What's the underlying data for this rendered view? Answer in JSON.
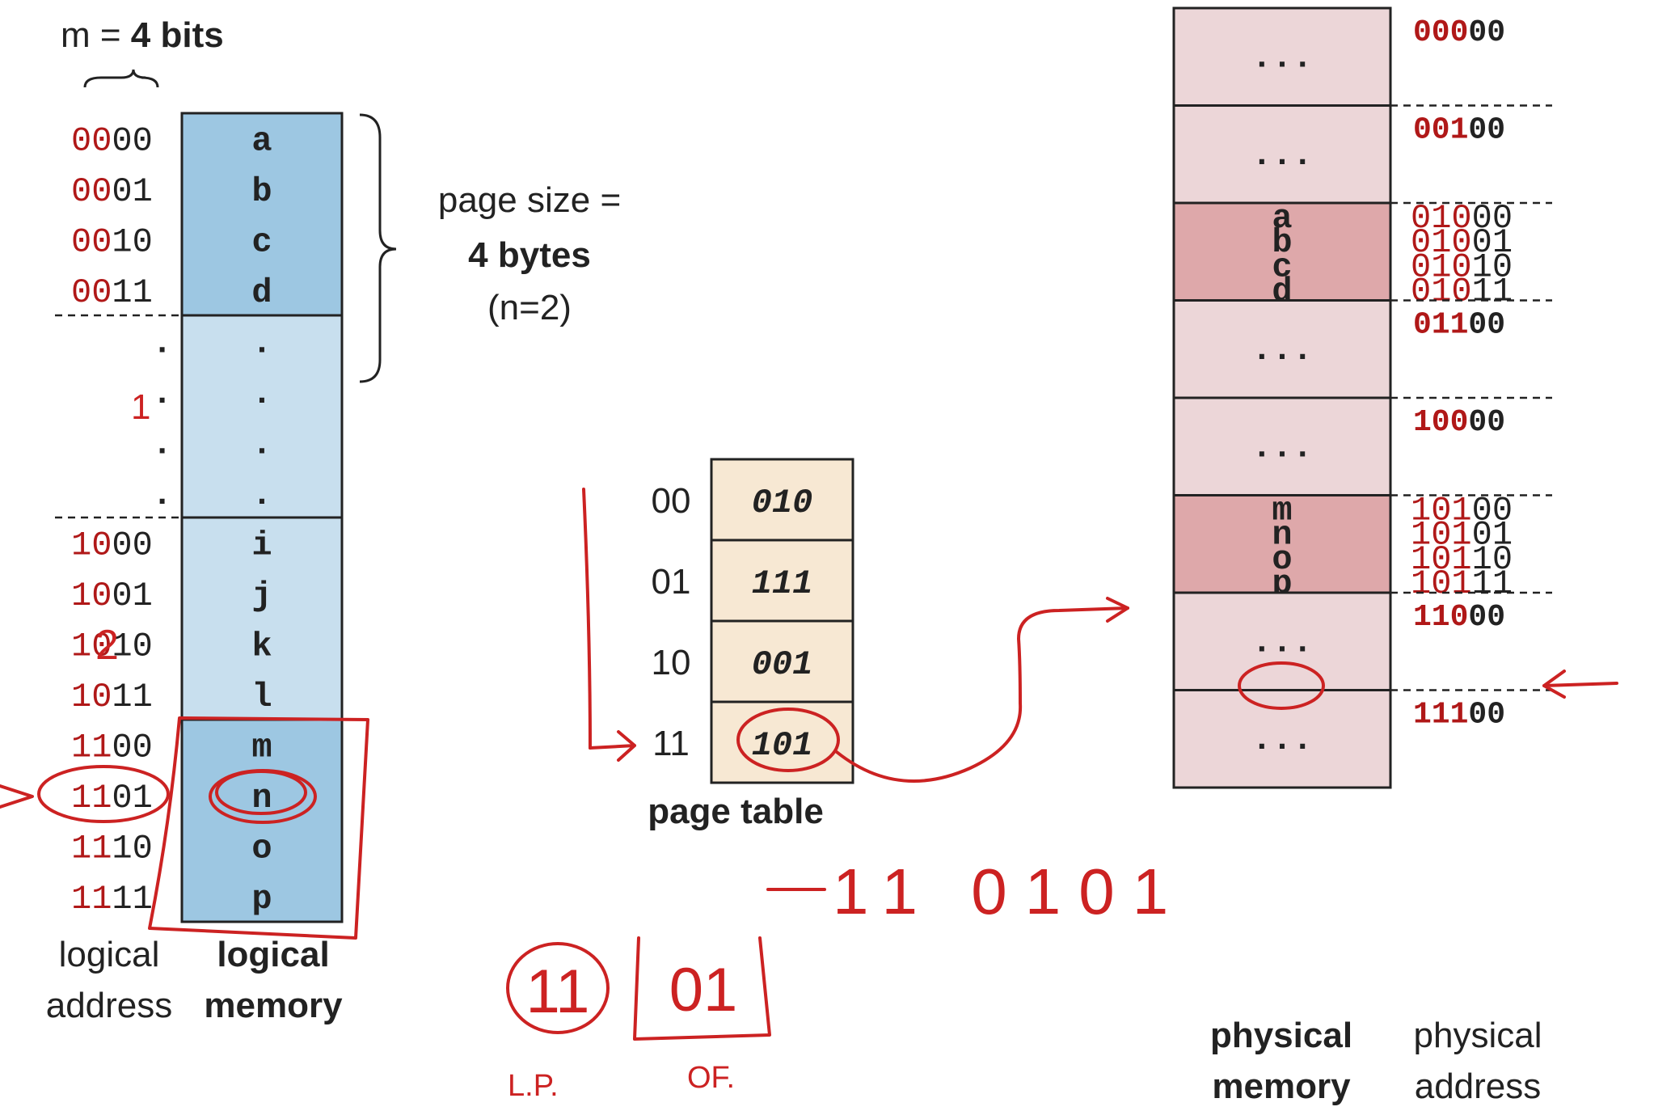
{
  "header": {
    "m_prefix": "m = ",
    "m_value": "4 bits"
  },
  "page_size": {
    "line1": "page size =",
    "line2": "4 bytes",
    "line3": "(n=2)"
  },
  "logical_memory": {
    "rows": [
      {
        "addr_hi": "00",
        "addr_lo": "00",
        "value": "a"
      },
      {
        "addr_hi": "00",
        "addr_lo": "01",
        "value": "b"
      },
      {
        "addr_hi": "00",
        "addr_lo": "10",
        "value": "c"
      },
      {
        "addr_hi": "00",
        "addr_lo": "11",
        "value": "d"
      },
      {
        "addr_hi": ".",
        "addr_lo": "",
        "value": "."
      },
      {
        "addr_hi": ".",
        "addr_lo": "",
        "value": "."
      },
      {
        "addr_hi": ".",
        "addr_lo": "",
        "value": "."
      },
      {
        "addr_hi": ".",
        "addr_lo": "",
        "value": "."
      },
      {
        "addr_hi": "10",
        "addr_lo": "00",
        "value": "i"
      },
      {
        "addr_hi": "10",
        "addr_lo": "01",
        "value": "j"
      },
      {
        "addr_hi": "10",
        "addr_lo": "10",
        "value": "k"
      },
      {
        "addr_hi": "10",
        "addr_lo": "11",
        "value": "l"
      },
      {
        "addr_hi": "11",
        "addr_lo": "00",
        "value": "m"
      },
      {
        "addr_hi": "11",
        "addr_lo": "01",
        "value": "n"
      },
      {
        "addr_hi": "11",
        "addr_lo": "10",
        "value": "o"
      },
      {
        "addr_hi": "11",
        "addr_lo": "11",
        "value": "p"
      }
    ],
    "label_left_1": "logical",
    "label_left_2": "address",
    "label_right_1": "logical",
    "label_right_2": "memory"
  },
  "page_table": {
    "rows": [
      {
        "index": "00",
        "frame": "010"
      },
      {
        "index": "01",
        "frame": "111"
      },
      {
        "index": "10",
        "frame": "001"
      },
      {
        "index": "11",
        "frame": "101"
      }
    ],
    "label": "page table"
  },
  "physical_memory": {
    "frames": [
      {
        "addr_hi": "000",
        "addr_lo": "00",
        "content": [
          "..."
        ],
        "fill": "light"
      },
      {
        "addr_hi": "001",
        "addr_lo": "00",
        "content": [
          "..."
        ],
        "fill": "light"
      },
      {
        "addr_hi": "010",
        "addr_lo": "00",
        "content": [
          "a",
          "b",
          "c",
          "d"
        ],
        "fill": "dark",
        "addrs": [
          [
            "010",
            "00"
          ],
          [
            "010",
            "01"
          ],
          [
            "010",
            "10"
          ],
          [
            "010",
            "11"
          ]
        ]
      },
      {
        "addr_hi": "011",
        "addr_lo": "00",
        "content": [
          "..."
        ],
        "fill": "light"
      },
      {
        "addr_hi": "100",
        "addr_lo": "00",
        "content": [
          "..."
        ],
        "fill": "light"
      },
      {
        "addr_hi": "101",
        "addr_lo": "00",
        "content": [
          "m",
          "n",
          "o",
          "p"
        ],
        "fill": "dark",
        "addrs": [
          [
            "101",
            "00"
          ],
          [
            "101",
            "01"
          ],
          [
            "101",
            "10"
          ],
          [
            "101",
            "11"
          ]
        ]
      },
      {
        "addr_hi": "110",
        "addr_lo": "00",
        "content": [
          "..."
        ],
        "fill": "light"
      },
      {
        "addr_hi": "111",
        "addr_lo": "00",
        "content": [
          "..."
        ],
        "fill": "light"
      }
    ],
    "label_left_1": "physical",
    "label_left_2": "memory",
    "label_right_1": "physical",
    "label_right_2": "address"
  },
  "annotations": {
    "result": "11 0101",
    "split_page": "11",
    "split_offset": "01",
    "lp": "L.P.",
    "of": "OF.",
    "one_mark": "1",
    "two_mark": "2"
  },
  "colors": {
    "logical_dark": "#9dc7e2",
    "logical_light": "#c8dfee",
    "page_table": "#f7e8d3",
    "phys_light": "#ecd6d8",
    "phys_dark": "#dea8aa",
    "addr_red": "#b01818",
    "ink": "#cc2222"
  }
}
